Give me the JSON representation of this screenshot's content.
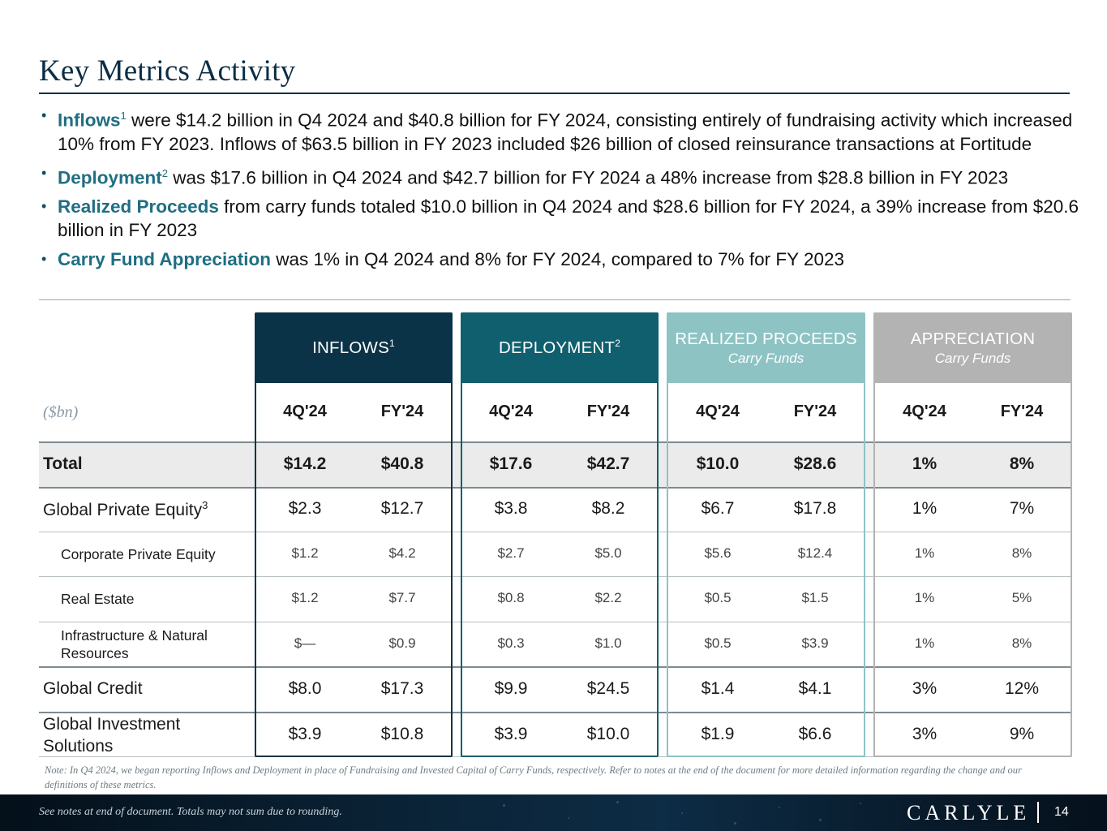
{
  "title": "Key Metrics Activity",
  "bullets": [
    {
      "term": "Inflows",
      "sup": "1",
      "text": " were $14.2 billion in Q4 2024 and $40.8 billion for FY 2024, consisting entirely of fundraising activity which increased 10% from FY 2023. Inflows of $63.5 billion in FY 2023 included $26 billion of closed reinsurance transactions at Fortitude"
    },
    {
      "term": "Deployment",
      "sup": "2",
      "text": " was $17.6 billion in Q4 2024 and $42.7 billion for FY 2024 a 48% increase from $28.8 billion in FY 2023"
    },
    {
      "term": "Realized Proceeds",
      "sup": "",
      "text": " from carry funds totaled $10.0 billion in Q4 2024 and $28.6 billion for FY 2024, a 39% increase from $20.6 billion in FY 2023"
    },
    {
      "term": "Carry Fund Appreciation",
      "sup": "",
      "text": " was 1% in Q4 2024 and 8% for FY 2024, compared to 7% for FY 2023"
    }
  ],
  "table": {
    "unit_label": "($bn)",
    "groups": [
      {
        "name": "INFLOWS",
        "sup": "1",
        "sub": "",
        "color": "#0b3347"
      },
      {
        "name": "DEPLOYMENT",
        "sup": "2",
        "sub": "",
        "color": "#0f5f6e"
      },
      {
        "name": "REALIZED PROCEEDS",
        "sup": "",
        "sub": "Carry Funds",
        "color": "#8ec3c4"
      },
      {
        "name": "APPRECIATION",
        "sup": "",
        "sub": "Carry Funds",
        "color": "#b3b3b3"
      }
    ],
    "period_headers": [
      "4Q'24",
      "FY'24"
    ],
    "rows": [
      {
        "label": "Total",
        "sup": "",
        "values": [
          "$14.2",
          "$40.8",
          "$17.6",
          "$42.7",
          "$10.0",
          "$28.6",
          "1%",
          "8%"
        ]
      },
      {
        "label": "Global Private Equity",
        "sup": "3",
        "values": [
          "$2.3",
          "$12.7",
          "$3.8",
          "$8.2",
          "$6.7",
          "$17.8",
          "1%",
          "7%"
        ]
      },
      {
        "label": "Corporate Private Equity",
        "sup": "",
        "values": [
          "$1.2",
          "$4.2",
          "$2.7",
          "$5.0",
          "$5.6",
          "$12.4",
          "1%",
          "8%"
        ]
      },
      {
        "label": "Real Estate",
        "sup": "",
        "values": [
          "$1.2",
          "$7.7",
          "$0.8",
          "$2.2",
          "$0.5",
          "$1.5",
          "1%",
          "5%"
        ]
      },
      {
        "label": "Infrastructure & Natural Resources",
        "sup": "",
        "values": [
          "$—",
          "$0.9",
          "$0.3",
          "$1.0",
          "$0.5",
          "$3.9",
          "1%",
          "8%"
        ]
      },
      {
        "label": "Global Credit",
        "sup": "",
        "values": [
          "$8.0",
          "$17.3",
          "$9.9",
          "$24.5",
          "$1.4",
          "$4.1",
          "3%",
          "12%"
        ]
      },
      {
        "label": "Global Investment Solutions",
        "sup": "",
        "values": [
          "$3.9",
          "$10.8",
          "$3.9",
          "$10.0",
          "$1.9",
          "$6.6",
          "3%",
          "9%"
        ]
      }
    ]
  },
  "note": "Note: In Q4 2024, we began reporting Inflows and Deployment in place of Fundraising and Invested Capital of Carry Funds, respectively. Refer to notes at the end of the document for more detailed information regarding the change and our definitions of these metrics.",
  "footer": {
    "text": "See notes at end of document. Totals may not sum due to rounding.",
    "logo": "CARLYLE",
    "page": "14"
  }
}
